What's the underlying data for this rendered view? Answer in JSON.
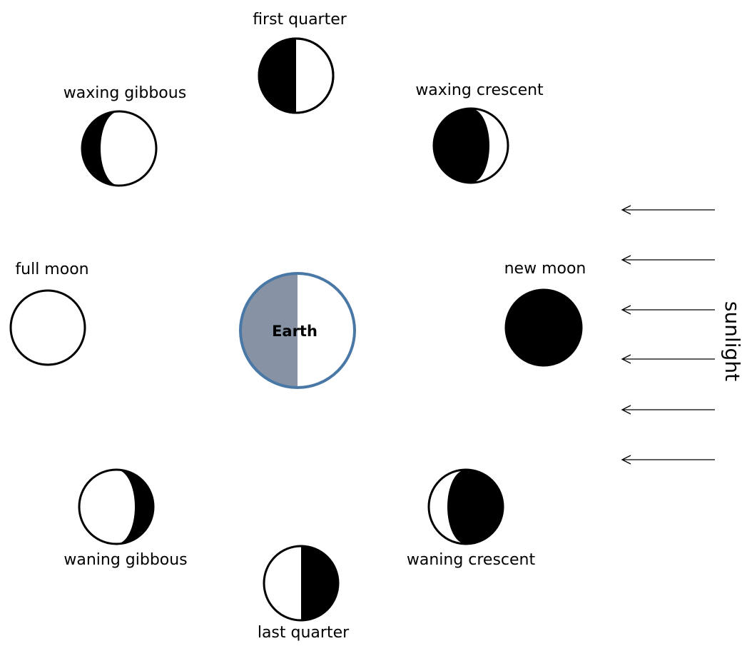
{
  "moons": [
    {
      "label": "first quarter"
    },
    {
      "label": "waxing gibbous"
    },
    {
      "label": "waxing crescent"
    },
    {
      "label": "full moon"
    },
    {
      "label": "new moon"
    },
    {
      "label": "waning gibbous"
    },
    {
      "label": "waning crescent"
    },
    {
      "label": "last quarter"
    }
  ],
  "earth": {
    "label": "Earth"
  },
  "sunlight": {
    "label": "sunlight"
  }
}
